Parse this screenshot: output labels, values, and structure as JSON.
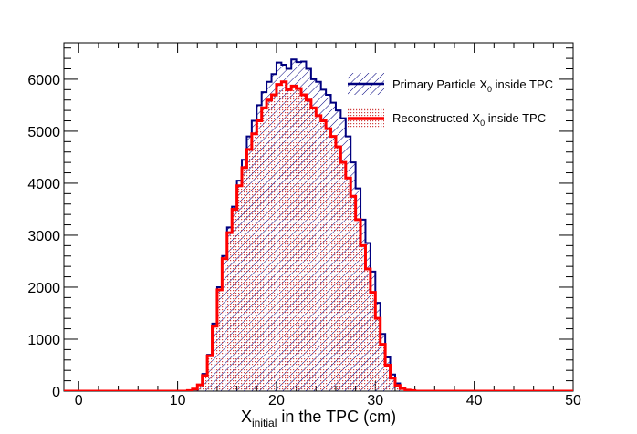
{
  "chart_data": {
    "type": "step-histogram",
    "title": "",
    "xlabel": {
      "main": "X",
      "subscript": "initial",
      "rest": " in the TPC (cm)"
    },
    "ylabel": "",
    "xlim": [
      -1.5,
      50
    ],
    "ylim": [
      0,
      6700
    ],
    "x_ticks": [
      0,
      10,
      20,
      30,
      40,
      50
    ],
    "y_ticks": [
      0,
      1000,
      2000,
      3000,
      4000,
      5000,
      6000
    ],
    "bin_width": 0.5,
    "first_bin_low_edge": -1.5,
    "legend_position": "top-right",
    "series": [
      {
        "name": {
          "main": "Primary Particle X",
          "subscript": "0",
          "rest": " inside TPC"
        },
        "color": "#00007f",
        "fill": "hatch",
        "values": [
          0,
          0,
          0,
          0,
          0,
          0,
          0,
          0,
          0,
          0,
          0,
          0,
          0,
          0,
          0,
          0,
          0,
          0,
          0,
          0,
          0,
          0,
          0,
          0,
          0,
          10,
          40,
          120,
          330,
          700,
          1300,
          2000,
          2600,
          3150,
          3550,
          4050,
          4450,
          4900,
          5200,
          5500,
          5750,
          5950,
          6100,
          6320,
          6280,
          6200,
          6380,
          6330,
          6340,
          6200,
          6000,
          5950,
          5800,
          5700,
          5550,
          5400,
          5250,
          4900,
          4400,
          3900,
          3300,
          2850,
          2300,
          1700,
          1100,
          650,
          320,
          150,
          60,
          20,
          10,
          0,
          0,
          0,
          0,
          0,
          0,
          0,
          0,
          0,
          0,
          0,
          0,
          0,
          0,
          0,
          0,
          0,
          0,
          0,
          0,
          0,
          0,
          0,
          0,
          0,
          0,
          0,
          0,
          0,
          0,
          0,
          0
        ]
      },
      {
        "name": {
          "main": "Reconstructed X",
          "subscript": "0",
          "rest": " inside TPC"
        },
        "color": "#ff0000",
        "fill": "dots",
        "values": [
          0,
          0,
          0,
          0,
          0,
          0,
          0,
          0,
          0,
          0,
          0,
          0,
          0,
          0,
          0,
          0,
          0,
          0,
          0,
          0,
          0,
          0,
          0,
          0,
          0,
          10,
          40,
          120,
          300,
          680,
          1250,
          1950,
          2550,
          3050,
          3500,
          3950,
          4300,
          4650,
          4950,
          5200,
          5450,
          5600,
          5700,
          5900,
          5950,
          5800,
          5870,
          5820,
          5700,
          5600,
          5450,
          5300,
          5200,
          5050,
          4900,
          4700,
          4400,
          4100,
          3750,
          3300,
          2800,
          2350,
          1900,
          1400,
          900,
          500,
          250,
          110,
          50,
          20,
          10,
          0,
          0,
          0,
          0,
          0,
          0,
          0,
          0,
          0,
          0,
          0,
          0,
          0,
          0,
          0,
          0,
          0,
          0,
          0,
          0,
          0,
          0,
          0,
          0,
          0,
          0,
          0,
          0,
          0,
          0,
          0,
          0
        ]
      }
    ]
  }
}
